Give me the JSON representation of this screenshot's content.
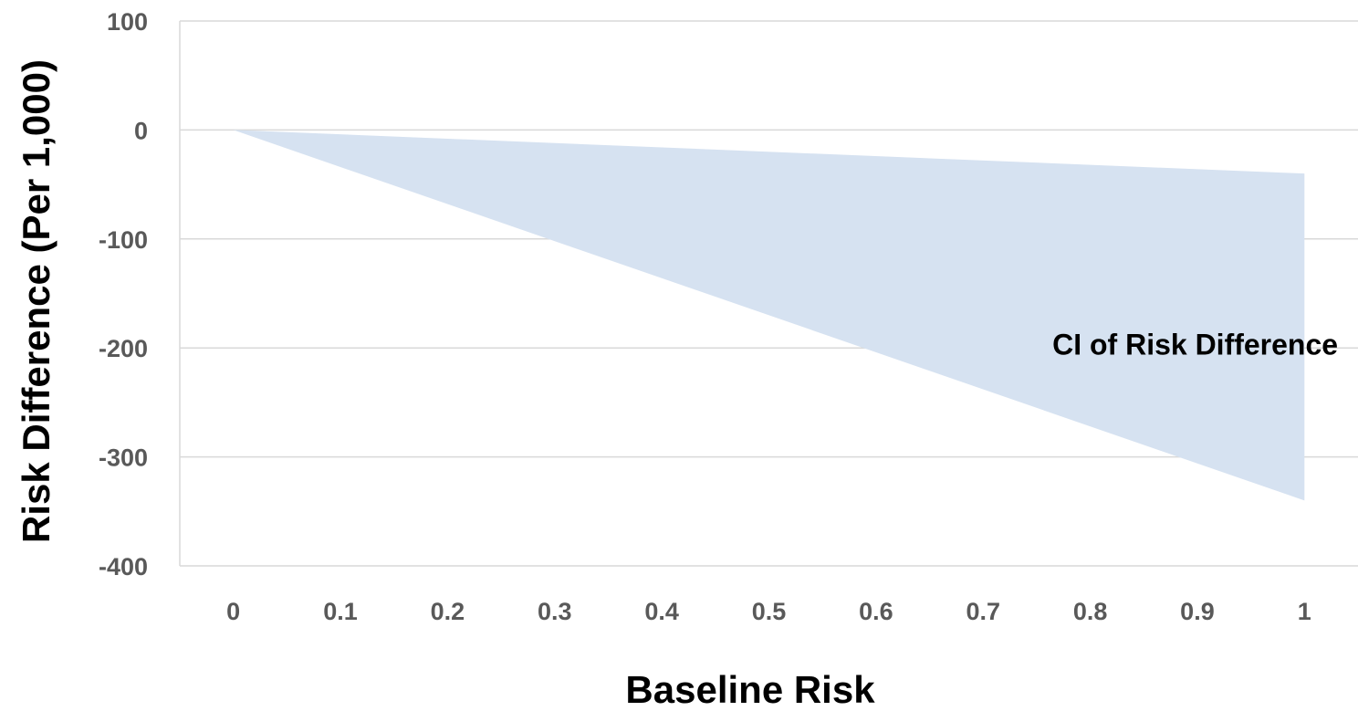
{
  "chart_data": {
    "type": "area",
    "title": "",
    "xlabel": "Baseline Risk",
    "ylabel": "Risk Difference (Per 1,000)",
    "xlim": [
      0,
      1
    ],
    "ylim": [
      -400,
      100
    ],
    "x_ticks": [
      "0",
      "0.1",
      "0.2",
      "0.3",
      "0.4",
      "0.5",
      "0.6",
      "0.7",
      "0.8",
      "0.9",
      "1"
    ],
    "y_ticks": [
      "100",
      "0",
      "-100",
      "-200",
      "-300",
      "-400"
    ],
    "grid": true,
    "legend": "none",
    "series": [
      {
        "type": "band",
        "x": [
          0,
          1
        ],
        "upper": [
          0,
          -40
        ],
        "lower": [
          0,
          -340
        ],
        "color": "#d6e2f1"
      }
    ],
    "annotations": [
      {
        "text": "CI of Risk Difference",
        "x": 0.82,
        "y": -197
      }
    ]
  },
  "colors": {
    "band": "#d6e2f1",
    "grid": "#d9d9d9",
    "tick_text": "#595959",
    "title_text": "#000000"
  }
}
